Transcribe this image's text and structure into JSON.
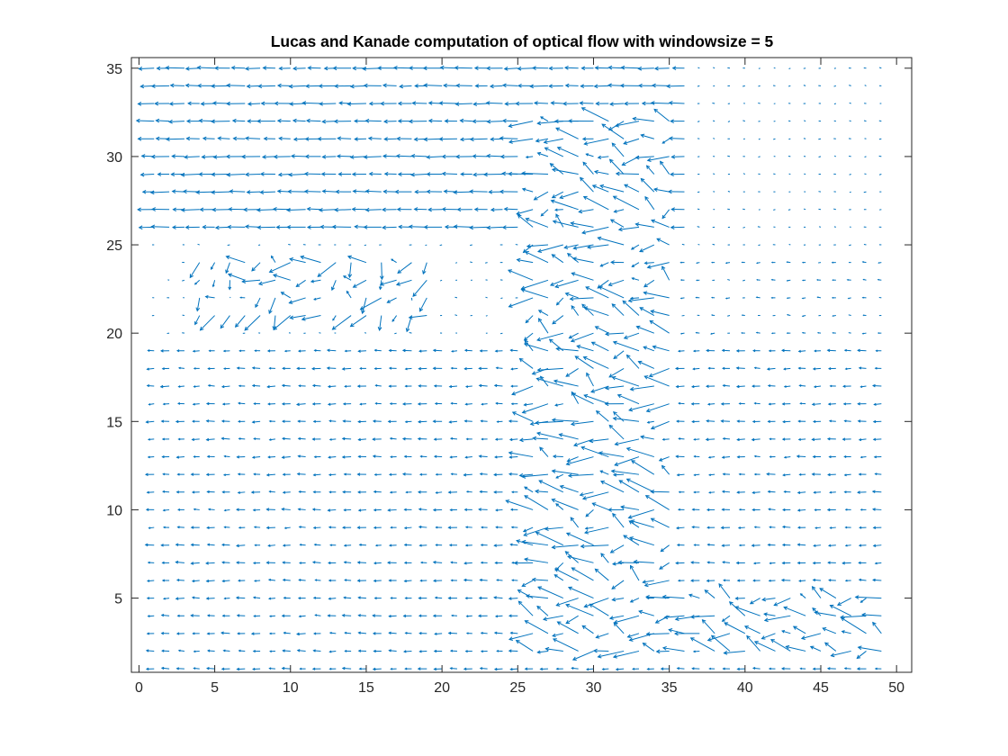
{
  "chart_data": {
    "type": "quiver",
    "title": "Lucas and Kanade computation of optical flow with windowsize  = 5",
    "xlabel": "",
    "ylabel": "",
    "xlim": [
      -0.5,
      51
    ],
    "ylim": [
      0.8,
      35.6
    ],
    "x_ticks": [
      0,
      5,
      10,
      15,
      20,
      25,
      30,
      35,
      40,
      45,
      50
    ],
    "y_ticks": [
      5,
      10,
      15,
      20,
      25,
      30,
      35
    ],
    "grid": false,
    "box": true,
    "arrow_color": "#0072BD",
    "grid_x": [
      1,
      49
    ],
    "grid_y": [
      1,
      35
    ],
    "regions": [
      {
        "name": "upper-left-flow",
        "x": [
          0,
          36
        ],
        "y": [
          26,
          35
        ],
        "u": -1.5,
        "v": 0.0
      },
      {
        "name": "upper-right-calm",
        "x": [
          36,
          49
        ],
        "y": [
          25,
          35
        ],
        "u": -0.2,
        "v": 0.0
      },
      {
        "name": "left-mid-calm",
        "x": [
          0,
          26
        ],
        "y": [
          20,
          25
        ],
        "u": -0.2,
        "v": 0.0
      },
      {
        "name": "left-mid-blob",
        "x": [
          4,
          19
        ],
        "y": [
          21,
          24
        ],
        "u": -0.8,
        "v": -0.5
      },
      {
        "name": "central-turbulent-band",
        "x": [
          26,
          35
        ],
        "y": [
          2,
          32
        ],
        "u": -1.5,
        "v": 0.3
      },
      {
        "name": "lower-field",
        "x": [
          0,
          49
        ],
        "y": [
          1,
          19
        ],
        "u": -0.7,
        "v": 0.0
      },
      {
        "name": "bottom-right-swirl",
        "x": [
          36,
          49
        ],
        "y": [
          2,
          5
        ],
        "u": -1.3,
        "v": 0.4
      }
    ]
  }
}
